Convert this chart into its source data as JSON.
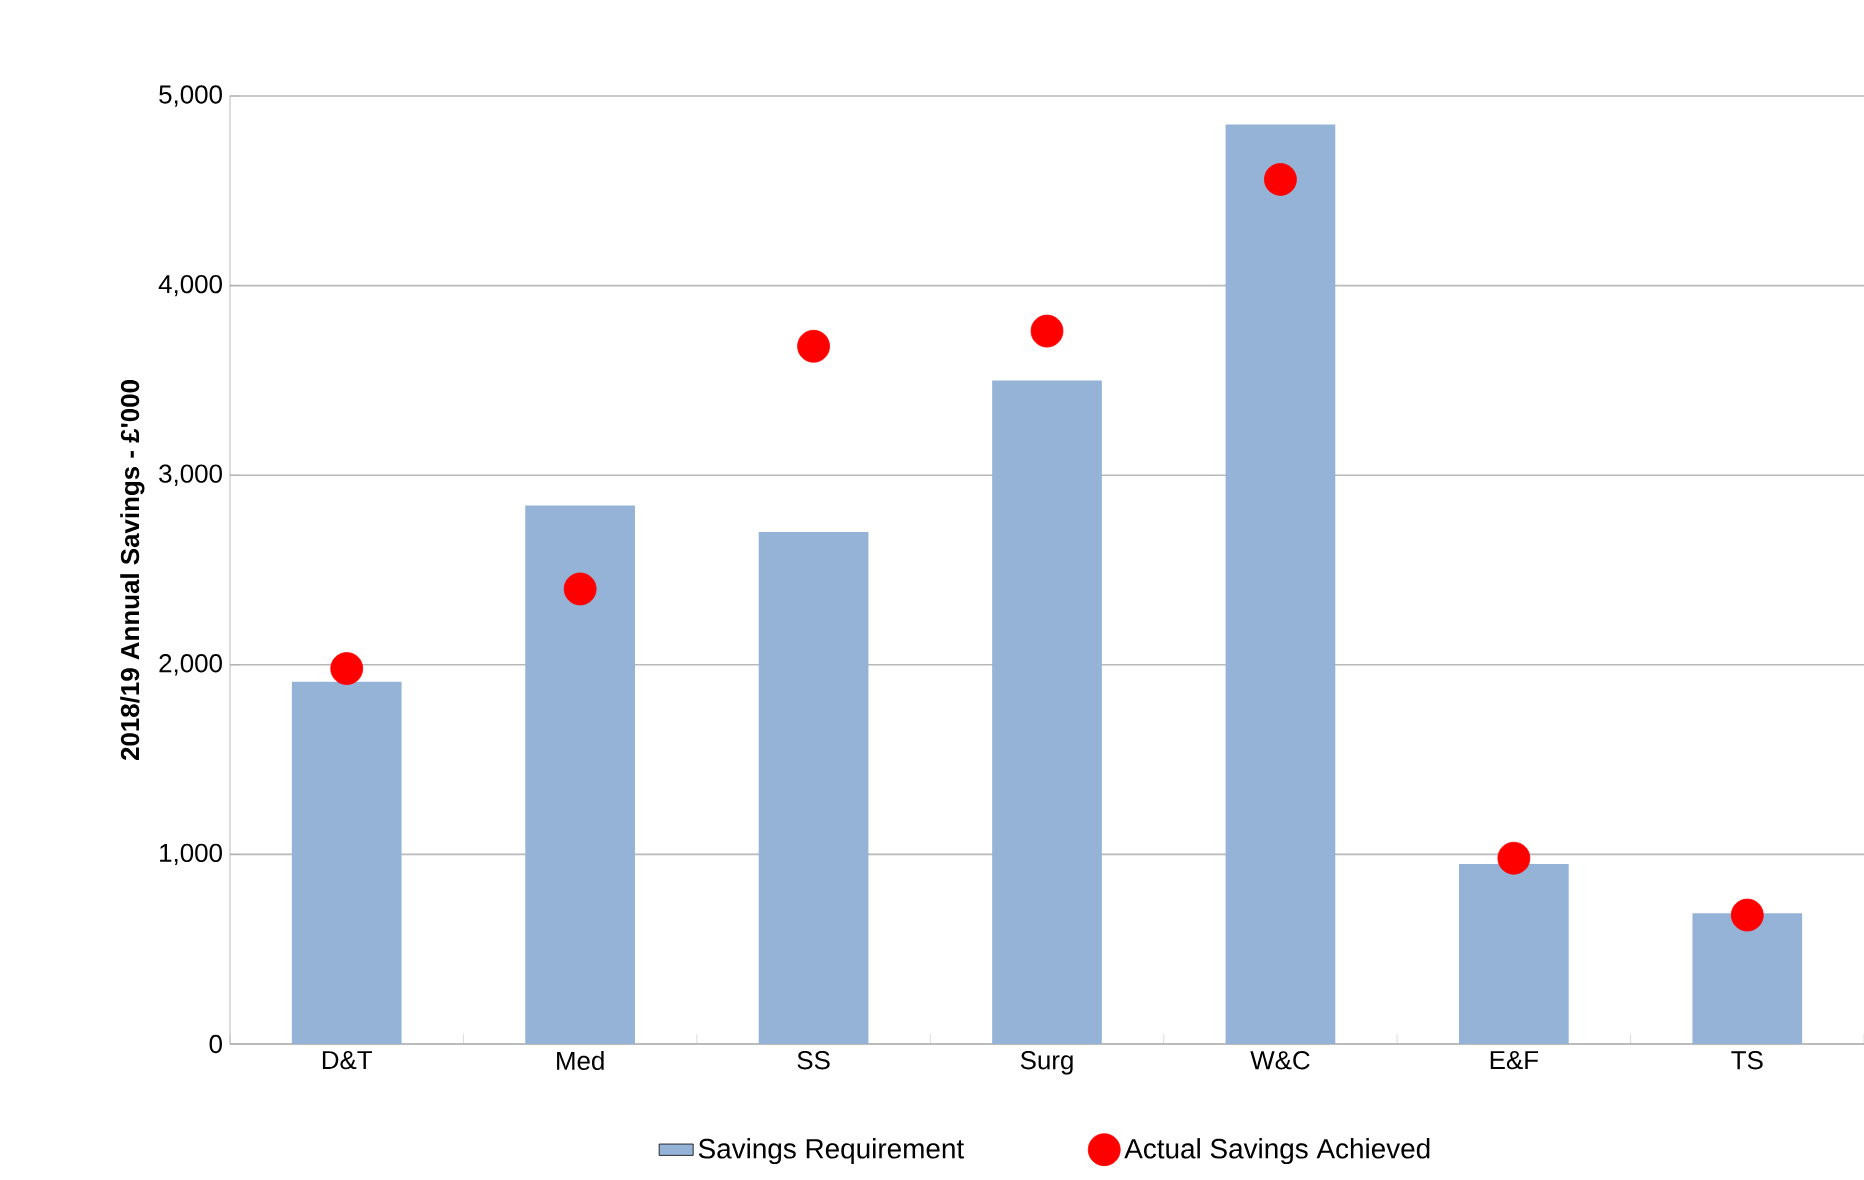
{
  "chart_data": {
    "type": "bar",
    "ylabel": "2018/19 Annual Savings - £'000",
    "categories": [
      "D&T",
      "Med",
      "SS",
      "Surg",
      "W&C",
      "E&F",
      "TS"
    ],
    "series": [
      {
        "name": "Savings Requirement",
        "color": "#95b3d7",
        "values": [
          1910,
          2840,
          2700,
          3500,
          4850,
          950,
          690
        ]
      },
      {
        "name": "Actual Savings Achieved",
        "type": "scatter",
        "color": "#ff0000",
        "values": [
          1980,
          2400,
          3680,
          3760,
          4560,
          980,
          680
        ]
      }
    ],
    "ylim": [
      0,
      5000
    ],
    "yticks": [
      0,
      {
        "value": 1000,
        "label": "1,000"
      },
      {
        "value": 2000,
        "label": "2,000"
      },
      {
        "value": 3000,
        "label": "3,000"
      },
      {
        "value": 4000,
        "label": "4,000"
      },
      {
        "value": 5000,
        "label": "5,000"
      }
    ],
    "grid": "y",
    "legend": "bottom"
  }
}
